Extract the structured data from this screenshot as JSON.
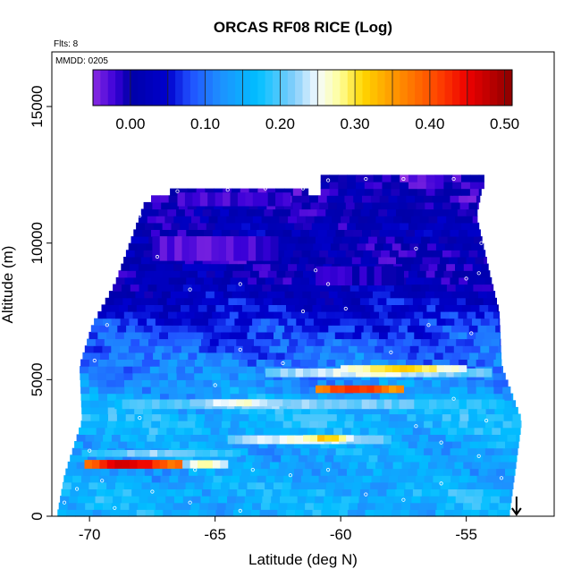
{
  "chart_data": {
    "type": "heatmap",
    "title": "ORCAS RF08 RICE (Log)",
    "flights_note": "Flts: 8",
    "date_note": "MMDD: 0205",
    "xlabel": "Latitude (deg N)",
    "ylabel": "Altitude (m)",
    "xlim": [
      -71.5,
      -51.5
    ],
    "ylim": [
      0,
      17000
    ],
    "xticks": [
      -70,
      -65,
      -60,
      -55
    ],
    "xtick_labels": [
      "-70",
      "-65",
      "-60",
      "-55"
    ],
    "yticks": [
      0,
      5000,
      10000,
      15000
    ],
    "ytick_labels": [
      "0",
      "5000",
      "10000",
      "15000"
    ],
    "colorbar": {
      "range": [
        -0.05,
        0.51
      ],
      "ticks": [
        0.0,
        0.1,
        0.2,
        0.3,
        0.4,
        0.5
      ],
      "tick_labels": [
        "0.00",
        "0.10",
        "0.20",
        "0.30",
        "0.40",
        "0.50"
      ],
      "color_stops": [
        [
          -0.05,
          "#8a2be2"
        ],
        [
          -0.02,
          "#3a00d8"
        ],
        [
          0.0,
          "#0000a8"
        ],
        [
          0.05,
          "#0000cd"
        ],
        [
          0.08,
          "#2050ff"
        ],
        [
          0.12,
          "#1e90ff"
        ],
        [
          0.17,
          "#00bfff"
        ],
        [
          0.22,
          "#87cefa"
        ],
        [
          0.25,
          "#f5fbff"
        ],
        [
          0.28,
          "#ffff99"
        ],
        [
          0.31,
          "#ffd700"
        ],
        [
          0.36,
          "#ff8c00"
        ],
        [
          0.41,
          "#ff4500"
        ],
        [
          0.45,
          "#ee0000"
        ],
        [
          0.51,
          "#8b0000"
        ]
      ]
    },
    "domain": {
      "bottom_lat": [
        -71,
        -51.8
      ],
      "right_edge": [
        [
          0,
          -53.3
        ],
        [
          3500,
          -52.8
        ],
        [
          5500,
          -53.6
        ],
        [
          7500,
          -53.7
        ],
        [
          9000,
          -54.1
        ],
        [
          11000,
          -54.6
        ],
        [
          12400,
          -54.3
        ]
      ],
      "left_edge": [
        [
          0,
          -71.3
        ],
        [
          1500,
          -71.0
        ],
        [
          3500,
          -70.3
        ],
        [
          5500,
          -70.4
        ],
        [
          7000,
          -69.9
        ],
        [
          8500,
          -69.0
        ],
        [
          10000,
          -68.4
        ],
        [
          11500,
          -67.8
        ],
        [
          12000,
          -66.8
        ]
      ],
      "top_segments": [
        [
          -66.8,
          -61.3,
          12000
        ],
        [
          -60.8,
          -54.3,
          12400
        ]
      ]
    },
    "background_bands": [
      [
        0,
        0.15
      ],
      [
        800,
        0.16
      ],
      [
        1800,
        0.14
      ],
      [
        2800,
        0.15
      ],
      [
        3500,
        0.17
      ],
      [
        4500,
        0.14
      ],
      [
        5500,
        0.11
      ],
      [
        6500,
        0.08
      ],
      [
        7500,
        0.05
      ],
      [
        8500,
        0.02
      ],
      [
        9500,
        0.0
      ],
      [
        10500,
        0.02
      ],
      [
        11500,
        0.0
      ],
      [
        12500,
        -0.01
      ]
    ],
    "features": [
      {
        "alt": 1900,
        "lat_start": -70.2,
        "lat_end": -66.3,
        "thickness": 320,
        "value": 0.46
      },
      {
        "alt": 1900,
        "lat_start": -66.3,
        "lat_end": -64.5,
        "thickness": 300,
        "value": 0.28
      },
      {
        "alt": 2300,
        "lat_start": -70.3,
        "lat_end": -64.0,
        "thickness": 250,
        "value": 0.22
      },
      {
        "alt": 2800,
        "lat_start": -64.5,
        "lat_end": -58.0,
        "thickness": 320,
        "value": 0.25
      },
      {
        "alt": 2850,
        "lat_start": -61.5,
        "lat_end": -59.5,
        "thickness": 240,
        "value": 0.32
      },
      {
        "alt": 4100,
        "lat_start": -69.0,
        "lat_end": -53.5,
        "thickness": 350,
        "value": 0.22
      },
      {
        "alt": 4150,
        "lat_start": -66.0,
        "lat_end": -62.0,
        "thickness": 260,
        "value": 0.26
      },
      {
        "alt": 4650,
        "lat_start": -61.0,
        "lat_end": -57.5,
        "thickness": 280,
        "value": 0.43
      },
      {
        "alt": 5250,
        "lat_start": -63.0,
        "lat_end": -54.0,
        "thickness": 320,
        "value": 0.25
      },
      {
        "alt": 5400,
        "lat_start": -60.0,
        "lat_end": -55.0,
        "thickness": 260,
        "value": 0.31
      },
      {
        "alt": 8800,
        "lat_start": -61.0,
        "lat_end": -57.5,
        "thickness": 700,
        "value": -0.01
      },
      {
        "alt": 9800,
        "lat_start": -67.5,
        "lat_end": -62.5,
        "thickness": 900,
        "value": -0.03
      },
      {
        "alt": 11600,
        "lat_start": -66.5,
        "lat_end": -62.0,
        "thickness": 500,
        "value": -0.02
      }
    ],
    "flight_points": [
      [
        -66.5,
        11900
      ],
      [
        -64.5,
        11950
      ],
      [
        -63.0,
        12000
      ],
      [
        -61.5,
        12000
      ],
      [
        -60.5,
        12300
      ],
      [
        -59.0,
        12350
      ],
      [
        -57.5,
        12350
      ],
      [
        -55.5,
        12350
      ],
      [
        -68.0,
        11000
      ],
      [
        -67.3,
        9500
      ],
      [
        -66.0,
        8300
      ],
      [
        -64.0,
        8500
      ],
      [
        -61.0,
        9000
      ],
      [
        -60.5,
        8500
      ],
      [
        -61.5,
        7500
      ],
      [
        -59.8,
        7600
      ],
      [
        -55.0,
        8700
      ],
      [
        -54.5,
        8900
      ],
      [
        -57.0,
        9800
      ],
      [
        -54.4,
        10000
      ],
      [
        -69.3,
        7000
      ],
      [
        -69.8,
        5700
      ],
      [
        -70.5,
        4200
      ],
      [
        -70.8,
        3000
      ],
      [
        -70.0,
        2400
      ],
      [
        -69.5,
        1300
      ],
      [
        -70.5,
        1000
      ],
      [
        -71.0,
        500
      ],
      [
        -69.0,
        300
      ],
      [
        -67.5,
        900
      ],
      [
        -66.0,
        500
      ],
      [
        -64.0,
        200
      ],
      [
        -62.0,
        1500
      ],
      [
        -60.5,
        1700
      ],
      [
        -59.0,
        800
      ],
      [
        -57.5,
        600
      ],
      [
        -56.0,
        1200
      ],
      [
        -54.5,
        2200
      ],
      [
        -53.6,
        1400
      ],
      [
        -54.8,
        6700
      ],
      [
        -56.5,
        7000
      ],
      [
        -55.5,
        4300
      ],
      [
        -54.2,
        3500
      ],
      [
        -56.0,
        2700
      ],
      [
        -57.0,
        3300
      ],
      [
        -64.0,
        6100
      ],
      [
        -65.0,
        4800
      ],
      [
        -68.0,
        3600
      ],
      [
        -62.3,
        5600
      ],
      [
        -58.0,
        6000
      ],
      [
        -65.8,
        1700
      ],
      [
        -63.5,
        1700
      ]
    ],
    "arrow_lat": -53.0
  }
}
